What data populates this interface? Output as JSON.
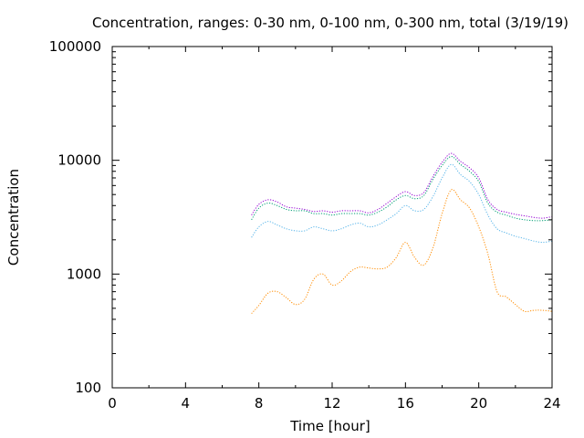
{
  "chart_data": {
    "type": "line",
    "title": "Concentration, ranges: 0-30 nm, 0-100 nm, 0-300 nm, total (3/19/19)",
    "xlabel": "Time [hour]",
    "ylabel": "Concentration",
    "xlim": [
      0,
      24
    ],
    "ylim": [
      100,
      100000
    ],
    "yscale": "log",
    "grid": false,
    "legend": "none",
    "x_ticks": [
      "0",
      "4",
      "8",
      "12",
      "16",
      "20",
      "24"
    ],
    "y_ticks": [
      "100",
      "1000",
      "10000",
      "100000"
    ],
    "x": [
      7.6,
      8,
      8.5,
      9,
      9.5,
      10,
      10.5,
      11,
      11.5,
      12,
      12.5,
      13,
      13.5,
      14,
      14.5,
      15,
      15.5,
      16,
      16.5,
      17,
      17.5,
      18,
      18.5,
      19,
      19.5,
      20,
      20.5,
      21,
      21.5,
      22,
      22.5,
      23,
      23.5,
      24
    ],
    "series": [
      {
        "color": "#ff8c00",
        "values": [
          450,
          530,
          680,
          700,
          620,
          540,
          600,
          900,
          1000,
          800,
          870,
          1050,
          1150,
          1130,
          1110,
          1150,
          1400,
          1900,
          1400,
          1200,
          1700,
          3400,
          5500,
          4500,
          3800,
          2600,
          1500,
          700,
          630,
          540,
          470,
          480,
          480,
          470
        ]
      },
      {
        "color": "#56b4e9",
        "values": [
          2100,
          2600,
          2900,
          2700,
          2500,
          2400,
          2400,
          2600,
          2500,
          2400,
          2500,
          2700,
          2800,
          2600,
          2700,
          3000,
          3400,
          4000,
          3600,
          3700,
          4800,
          7000,
          9200,
          7500,
          6500,
          5000,
          3300,
          2500,
          2300,
          2150,
          2050,
          1950,
          1900,
          1950
        ]
      },
      {
        "color": "#009e73",
        "values": [
          3000,
          3800,
          4200,
          4000,
          3700,
          3600,
          3600,
          3400,
          3400,
          3300,
          3400,
          3400,
          3400,
          3300,
          3500,
          3900,
          4500,
          4900,
          4600,
          4900,
          6800,
          9000,
          10800,
          9200,
          8000,
          6500,
          4200,
          3500,
          3300,
          3100,
          3000,
          2950,
          2950,
          3000
        ]
      },
      {
        "color": "#9400d3",
        "values": [
          3300,
          4100,
          4500,
          4300,
          3900,
          3800,
          3700,
          3550,
          3600,
          3500,
          3600,
          3600,
          3600,
          3450,
          3700,
          4200,
          4800,
          5300,
          4900,
          5200,
          7200,
          9600,
          11500,
          9800,
          8600,
          7000,
          4500,
          3700,
          3500,
          3350,
          3250,
          3150,
          3100,
          3200
        ]
      }
    ]
  }
}
